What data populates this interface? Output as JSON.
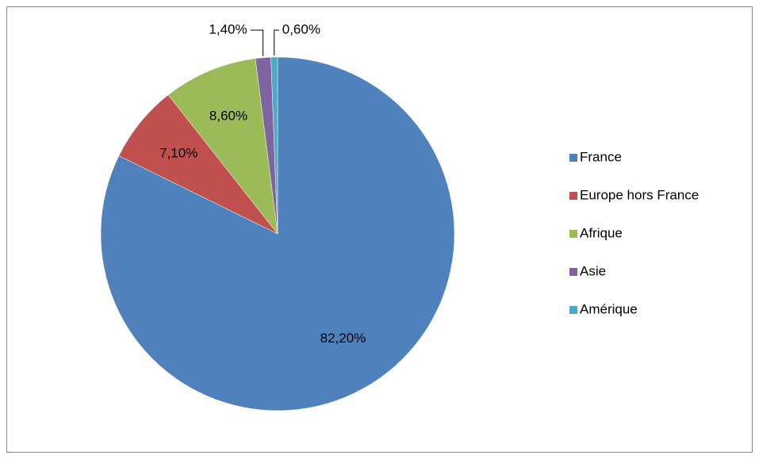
{
  "chart_data": {
    "type": "pie",
    "categories": [
      "France",
      "Europe hors France",
      "Afrique",
      "Asie",
      "Amérique"
    ],
    "values": [
      82.2,
      7.1,
      8.6,
      1.4,
      0.6
    ],
    "value_labels": [
      "82,20%",
      "7,10%",
      "8,60%",
      "1,40%",
      "0,60%"
    ],
    "colors": [
      "#4F81BD",
      "#C0504D",
      "#9BBB59",
      "#8064A2",
      "#4BACC6"
    ],
    "legend": "right"
  }
}
